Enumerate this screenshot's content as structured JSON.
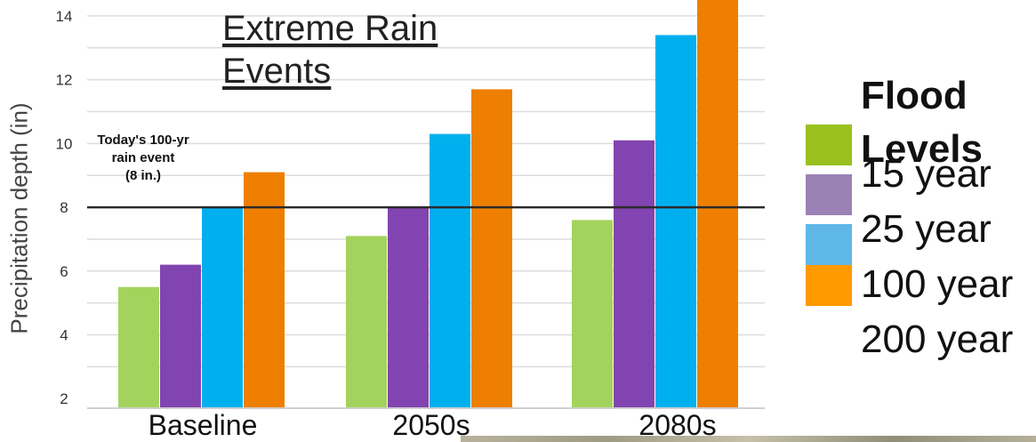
{
  "chart_data": {
    "type": "bar",
    "title_lines": [
      "Extreme Rain",
      "Events"
    ],
    "ylabel": "Precipitation depth (in)",
    "xlabel": "",
    "categories": [
      "Baseline",
      "2050s",
      "2080s"
    ],
    "yticks": [
      2,
      4,
      6,
      8,
      10,
      12,
      14
    ],
    "ylim": [
      1.7,
      14.5
    ],
    "grid": true,
    "series": [
      {
        "values": [
          5.5,
          7.1,
          7.6
        ],
        "color": "#a3d35d"
      },
      {
        "values": [
          6.2,
          8.0,
          10.1
        ],
        "color": "#8244b0"
      },
      {
        "values": [
          8.0,
          10.3,
          13.4
        ],
        "color": "#00b0ee"
      },
      {
        "values": [
          9.1,
          11.7,
          14.6
        ],
        "color": "#ee7f00"
      }
    ],
    "reference_line": {
      "value": 8,
      "color": "#2b2b2b"
    },
    "annotation_lines": [
      "Today's 100-yr",
      "rain event",
      "(8 in.)"
    ],
    "legend": {
      "title_lines": [
        "Flood",
        "Levels"
      ],
      "labels": [
        "15 year",
        "25 year",
        "100 year",
        "200 year"
      ],
      "swatch_colors": [
        "#99c01f",
        "#9b82b5",
        "#5fb7e8",
        "#ff9a00"
      ]
    }
  }
}
